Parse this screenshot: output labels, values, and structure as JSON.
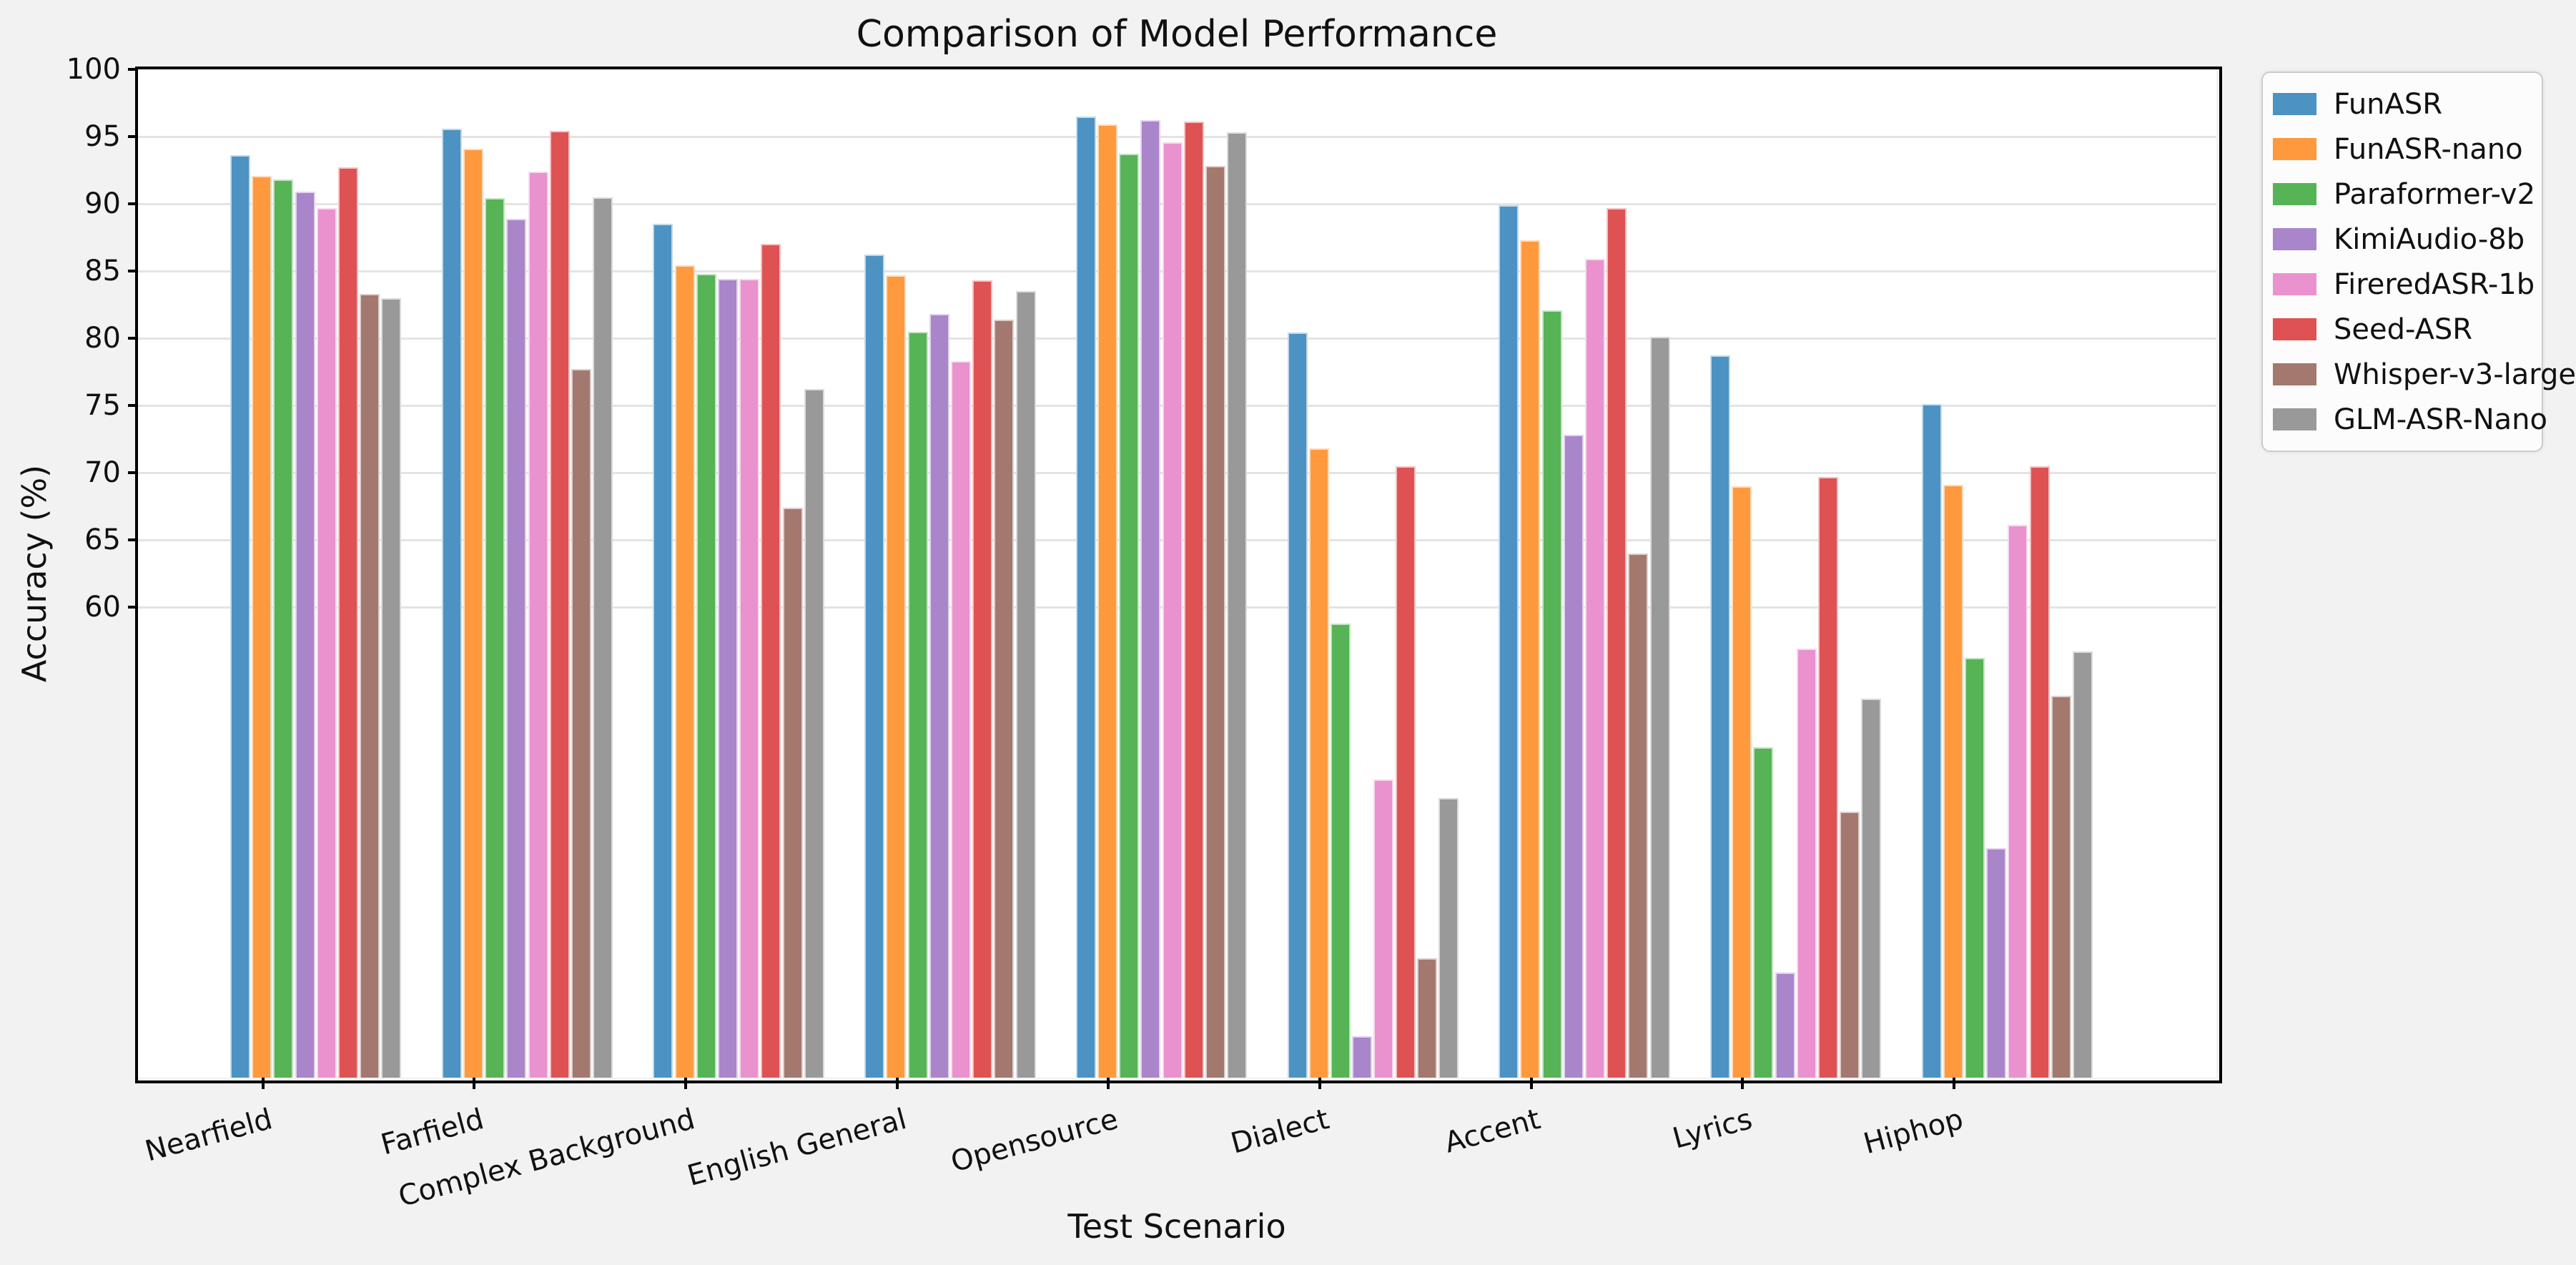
{
  "figure": {
    "background_color": "#f2f2f2",
    "plot_background_color": "#ffffff",
    "grid_color": "#e4e4e4",
    "spine_color": "#000000"
  },
  "chart_data": {
    "type": "bar",
    "title": "Comparison of Model Performance",
    "xlabel": "Test Scenario",
    "ylabel": "Accuracy (%)",
    "categories": [
      "Nearfield",
      "Farfield",
      "Complex Background",
      "English General",
      "Opensource",
      "Dialect",
      "Accent",
      "Lyrics",
      "Hiphop"
    ],
    "series": [
      {
        "name": "FunASR",
        "color": "#4C92C3",
        "values": [
          93.6,
          95.6,
          88.5,
          86.2,
          96.5,
          80.4,
          89.9,
          78.7,
          75.1
        ]
      },
      {
        "name": "FunASR-nano",
        "color": "#FF993E",
        "values": [
          92.1,
          94.1,
          85.4,
          84.7,
          95.9,
          71.8,
          87.3,
          69.0,
          69.1
        ]
      },
      {
        "name": "Paraformer-v2",
        "color": "#56B356",
        "values": [
          91.8,
          90.4,
          84.8,
          80.5,
          93.7,
          58.8,
          82.1,
          49.6,
          56.2
        ]
      },
      {
        "name": "KimiAudio-8b",
        "color": "#A985CA",
        "values": [
          90.9,
          88.9,
          84.4,
          81.8,
          96.2,
          28.1,
          72.8,
          32.8,
          42.1
        ]
      },
      {
        "name": "FireredASR-1b",
        "color": "#E992CE",
        "values": [
          89.7,
          92.4,
          84.4,
          78.3,
          94.6,
          47.2,
          85.9,
          56.9,
          66.1
        ]
      },
      {
        "name": "Seed-ASR",
        "color": "#DE5253",
        "values": [
          92.7,
          95.4,
          87.0,
          84.3,
          96.1,
          70.5,
          89.7,
          69.7,
          70.5
        ]
      },
      {
        "name": "Whisper-v3-large",
        "color": "#A3786F",
        "values": [
          83.3,
          77.7,
          67.4,
          81.4,
          92.8,
          33.9,
          64.0,
          44.8,
          53.4
        ]
      },
      {
        "name": "GLM-ASR-Nano",
        "color": "#999999",
        "values": [
          83.0,
          90.5,
          76.2,
          83.5,
          95.3,
          45.8,
          80.1,
          53.2,
          56.7
        ]
      }
    ],
    "ylim": [
      25,
      100
    ],
    "yticks": [
      60,
      65,
      70,
      75,
      80,
      85,
      90,
      95,
      100
    ],
    "grid": "horizontal lines at labeled yticks only",
    "legend_position": "upper right, outside plot area",
    "bar_alpha": 0.8
  }
}
